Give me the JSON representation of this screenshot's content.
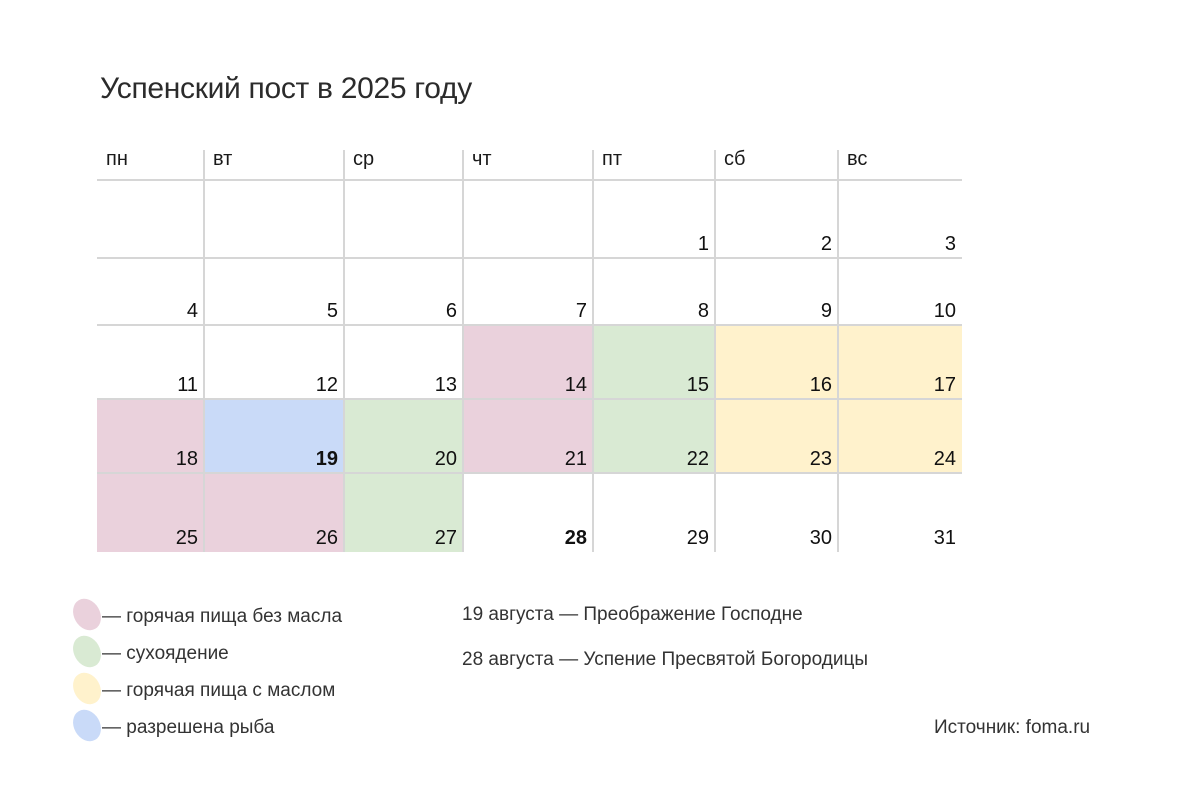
{
  "title": "Успенский пост в 2025 году",
  "colors": {
    "hot_food_no_oil": "#ead1dc",
    "dry_eating": "#d9ead3",
    "hot_food_with_oil": "#fff2cc",
    "fish_allowed": "#c9daf8",
    "grid": "#d6d6d6"
  },
  "weekdays": [
    "пн",
    "вт",
    "ср",
    "чт",
    "пт",
    "сб",
    "вс"
  ],
  "weeks": [
    [
      {
        "day": "",
        "type": "none",
        "bold": false
      },
      {
        "day": "",
        "type": "none",
        "bold": false
      },
      {
        "day": "",
        "type": "none",
        "bold": false
      },
      {
        "day": "",
        "type": "none",
        "bold": false
      },
      {
        "day": "1",
        "type": "none",
        "bold": false
      },
      {
        "day": "2",
        "type": "none",
        "bold": false
      },
      {
        "day": "3",
        "type": "none",
        "bold": false
      }
    ],
    [
      {
        "day": "4",
        "type": "none",
        "bold": false
      },
      {
        "day": "5",
        "type": "none",
        "bold": false
      },
      {
        "day": "6",
        "type": "none",
        "bold": false
      },
      {
        "day": "7",
        "type": "none",
        "bold": false
      },
      {
        "day": "8",
        "type": "none",
        "bold": false
      },
      {
        "day": "9",
        "type": "none",
        "bold": false
      },
      {
        "day": "10",
        "type": "none",
        "bold": false
      }
    ],
    [
      {
        "day": "11",
        "type": "none",
        "bold": false
      },
      {
        "day": "12",
        "type": "none",
        "bold": false
      },
      {
        "day": "13",
        "type": "none",
        "bold": false
      },
      {
        "day": "14",
        "type": "hot_food_no_oil",
        "bold": false
      },
      {
        "day": "15",
        "type": "dry_eating",
        "bold": false
      },
      {
        "day": "16",
        "type": "hot_food_with_oil",
        "bold": false
      },
      {
        "day": "17",
        "type": "hot_food_with_oil",
        "bold": false
      }
    ],
    [
      {
        "day": "18",
        "type": "hot_food_no_oil",
        "bold": false
      },
      {
        "day": "19",
        "type": "fish_allowed",
        "bold": true
      },
      {
        "day": "20",
        "type": "dry_eating",
        "bold": false
      },
      {
        "day": "21",
        "type": "hot_food_no_oil",
        "bold": false
      },
      {
        "day": "22",
        "type": "dry_eating",
        "bold": false
      },
      {
        "day": "23",
        "type": "hot_food_with_oil",
        "bold": false
      },
      {
        "day": "24",
        "type": "hot_food_with_oil",
        "bold": false
      }
    ],
    [
      {
        "day": "25",
        "type": "hot_food_no_oil",
        "bold": false
      },
      {
        "day": "26",
        "type": "hot_food_no_oil",
        "bold": false
      },
      {
        "day": "27",
        "type": "dry_eating",
        "bold": false
      },
      {
        "day": "28",
        "type": "none",
        "bold": true
      },
      {
        "day": "29",
        "type": "none",
        "bold": false
      },
      {
        "day": "30",
        "type": "none",
        "bold": false
      },
      {
        "day": "31",
        "type": "none",
        "bold": false
      }
    ]
  ],
  "legend": [
    {
      "type": "hot_food_no_oil",
      "label": "— горячая пища без масла"
    },
    {
      "type": "dry_eating",
      "label": "— сухоядение"
    },
    {
      "type": "hot_food_with_oil",
      "label": "— горячая пища с маслом"
    },
    {
      "type": "fish_allowed",
      "label": "— разрешена рыба"
    }
  ],
  "notes": [
    "19 августа — Преображение Господне",
    "28 августа — Успение Пресвятой Богородицы"
  ],
  "source": "Источник: foma.ru"
}
